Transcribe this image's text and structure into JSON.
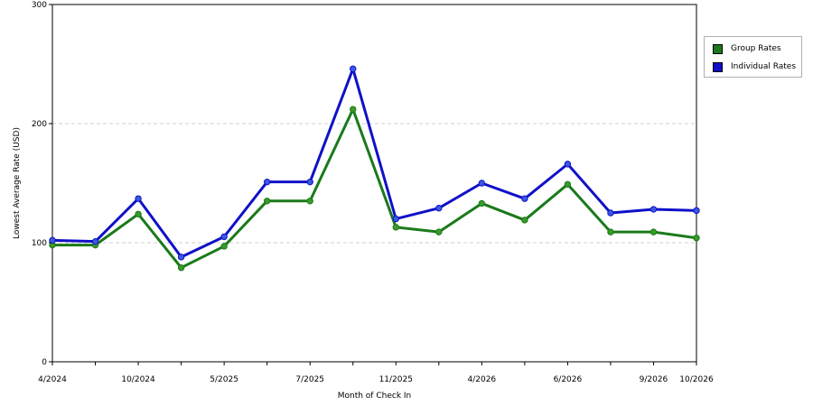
{
  "chart_data": {
    "type": "line",
    "xlabel": "Month of Check In",
    "ylabel": "Lowest Average Rate (USD)",
    "ylim": [
      0,
      300
    ],
    "yticks": [
      0,
      100,
      200,
      300
    ],
    "grid": true,
    "legend_position": "right",
    "x_positions": 16,
    "x_tick_labels": [
      {
        "index": 0,
        "label": "4/2024"
      },
      {
        "index": 2,
        "label": "10/2024"
      },
      {
        "index": 4,
        "label": "5/2025"
      },
      {
        "index": 6,
        "label": "7/2025"
      },
      {
        "index": 8,
        "label": "11/2025"
      },
      {
        "index": 10,
        "label": "4/2026"
      },
      {
        "index": 12,
        "label": "6/2026"
      },
      {
        "index": 14,
        "label": "9/2026"
      },
      {
        "index": 15,
        "label": "10/2026"
      }
    ],
    "series": [
      {
        "name": "Group Rates",
        "color": "#1a7a1a",
        "marker_color": "#3a9a2a",
        "values": [
          98,
          98,
          124,
          79,
          97,
          135,
          135,
          212,
          113,
          109,
          133,
          119,
          149,
          109,
          109,
          104
        ]
      },
      {
        "name": "Individual Rates",
        "color": "#1010c8",
        "marker_color": "#3a5ae0",
        "values": [
          102,
          101,
          137,
          88,
          105,
          151,
          151,
          246,
          120,
          129,
          150,
          137,
          166,
          125,
          128,
          127
        ]
      }
    ]
  }
}
